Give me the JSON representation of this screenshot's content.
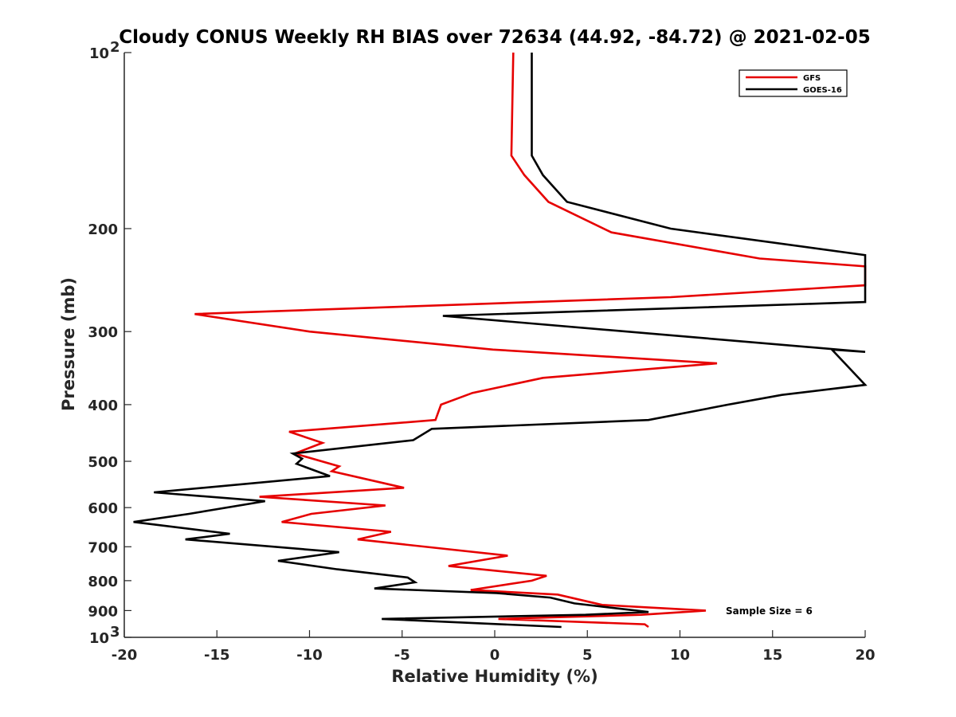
{
  "chart_data": {
    "type": "line",
    "title": "Cloudy CONUS Weekly RH BIAS over 72634 (44.92, -84.72) @ 2021-02-05",
    "xlabel": "Relative Humidity (%)",
    "ylabel": "Pressure (mb)",
    "xlim": [
      -20,
      20
    ],
    "ylim": [
      1000,
      100
    ],
    "y_scale": "log",
    "y_reversed": true,
    "x_ticks": [
      "-20",
      "-15",
      "-10",
      "-5",
      "0",
      "5",
      "10",
      "15",
      "20"
    ],
    "y_ticks": [
      {
        "value": 100,
        "base": "10",
        "exp": "2"
      },
      {
        "value": 200,
        "label": "200"
      },
      {
        "value": 300,
        "label": "300"
      },
      {
        "value": 400,
        "label": "400"
      },
      {
        "value": 500,
        "label": "500"
      },
      {
        "value": 600,
        "label": "600"
      },
      {
        "value": 700,
        "label": "700"
      },
      {
        "value": 800,
        "label": "800"
      },
      {
        "value": 900,
        "label": "900"
      },
      {
        "value": 1000,
        "base": "10",
        "exp": "3"
      }
    ],
    "legend_position": "top-right",
    "grid": false,
    "annotation": "Sample Size = 6",
    "series": [
      {
        "name": "GFS",
        "color": "#e60000",
        "points": [
          [
            1.0,
            100
          ],
          [
            0.9,
            150
          ],
          [
            1.6,
            162
          ],
          [
            2.9,
            180
          ],
          [
            6.3,
            203
          ],
          [
            14.3,
            225
          ],
          [
            20.0,
            232
          ],
          [
            20.0,
            250
          ],
          [
            9.5,
            262
          ],
          [
            -16.2,
            280
          ],
          [
            -10.0,
            300
          ],
          [
            -0.1,
            322
          ],
          [
            12.0,
            340
          ],
          [
            2.6,
            360
          ],
          [
            -1.2,
            382
          ],
          [
            -2.9,
            400
          ],
          [
            -3.2,
            425
          ],
          [
            -11.1,
            445
          ],
          [
            -9.3,
            465
          ],
          [
            -10.8,
            485
          ],
          [
            -8.4,
            510
          ],
          [
            -8.8,
            520
          ],
          [
            -4.9,
            555
          ],
          [
            -12.7,
            575
          ],
          [
            -5.9,
            595
          ],
          [
            -9.9,
            615
          ],
          [
            -11.5,
            635
          ],
          [
            -5.6,
            660
          ],
          [
            -7.4,
            680
          ],
          [
            0.7,
            725
          ],
          [
            -2.5,
            755
          ],
          [
            2.8,
            785
          ],
          [
            2.0,
            800
          ],
          [
            -1.3,
            830
          ],
          [
            3.4,
            845
          ],
          [
            5.8,
            880
          ],
          [
            11.4,
            900
          ],
          [
            7.9,
            915
          ],
          [
            0.2,
            930
          ],
          [
            8.1,
            950
          ],
          [
            8.3,
            960
          ]
        ]
      },
      {
        "name": "GOES-16",
        "color": "#000000",
        "points": [
          [
            2.0,
            100
          ],
          [
            2.0,
            150
          ],
          [
            2.6,
            162
          ],
          [
            3.9,
            180
          ],
          [
            9.5,
            200
          ],
          [
            20.0,
            222
          ],
          [
            20.0,
            267
          ],
          [
            -2.8,
            282
          ],
          [
            20.0,
            325
          ],
          [
            18.2,
            322
          ],
          [
            20.0,
            370
          ],
          [
            15.5,
            385
          ],
          [
            12.6,
            400
          ],
          [
            8.3,
            425
          ],
          [
            -3.4,
            440
          ],
          [
            -4.4,
            460
          ],
          [
            -10.9,
            485
          ],
          [
            -10.4,
            495
          ],
          [
            -10.7,
            505
          ],
          [
            -8.9,
            530
          ],
          [
            -18.4,
            565
          ],
          [
            -12.4,
            585
          ],
          [
            -16.5,
            615
          ],
          [
            -19.5,
            635
          ],
          [
            -14.3,
            665
          ],
          [
            -16.7,
            680
          ],
          [
            -8.4,
            715
          ],
          [
            -11.7,
            740
          ],
          [
            -8.5,
            765
          ],
          [
            -4.7,
            790
          ],
          [
            -4.3,
            805
          ],
          [
            -6.5,
            825
          ],
          [
            0.1,
            840
          ],
          [
            3.0,
            855
          ],
          [
            4.3,
            875
          ],
          [
            8.3,
            905
          ],
          [
            4.9,
            915
          ],
          [
            -6.1,
            930
          ],
          [
            3.6,
            960
          ]
        ]
      }
    ]
  }
}
